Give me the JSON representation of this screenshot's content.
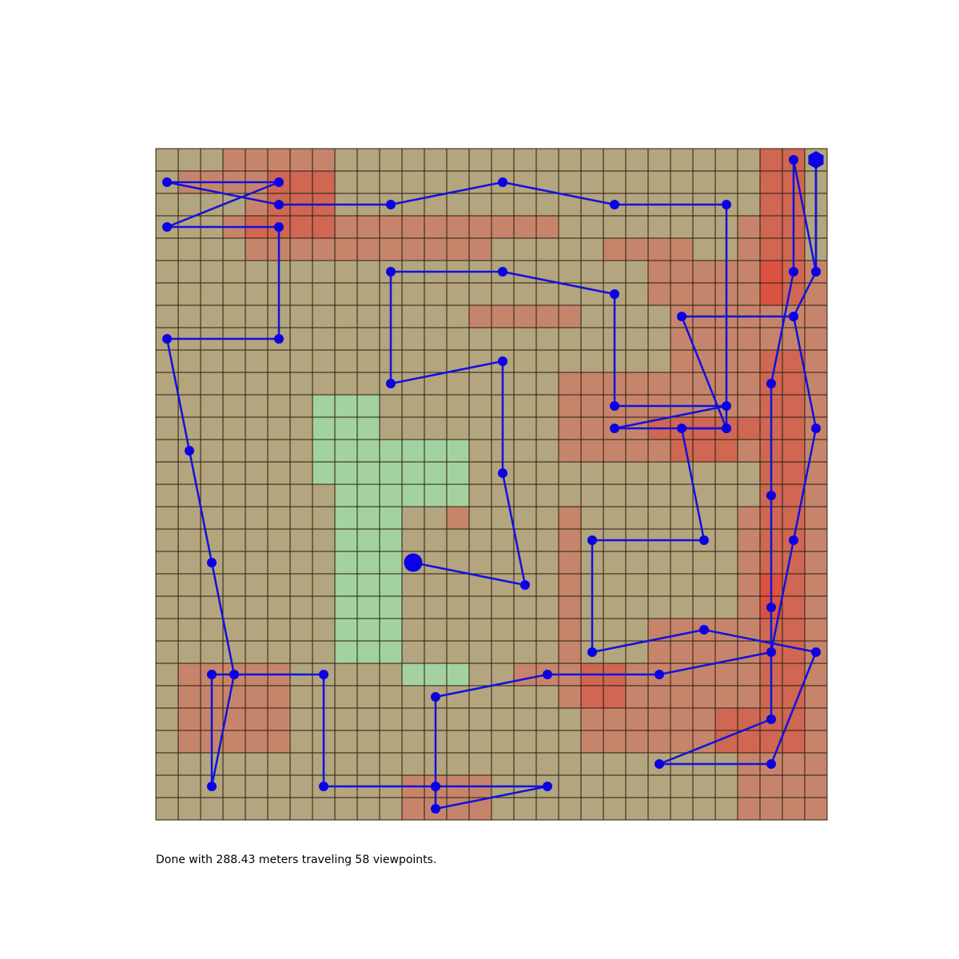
{
  "status_text": "Done with 288.43 meters traveling 58 viewpoints.",
  "colors": {
    "background": "#ffffff",
    "cell_neutral": "#b3a57d",
    "cell_green": "#a3d29f",
    "cell_red_1": "#c6856b",
    "cell_red_2": "#cf6752",
    "cell_red_3": "#dc5240",
    "grid_line": "#2a1c12",
    "path": "#1111dd",
    "marker": "#0b00e6"
  },
  "chart_data": {
    "type": "grid-path",
    "grid": {
      "cols": 30,
      "rows": 30,
      "cell_meaning": "0=neutral, 1=free (green), 2/3/4=increasing red intensity",
      "cells": [
        "000222220000000000000000000330",
        "022223330000000000000000000330",
        "000023330000000000000000000330",
        "000233332222222222000000002330",
        "000022222222222000002222002330",
        "000000000000000000000022222432",
        "000000000000000000000022222432",
        "000000000000002222200002222222",
        "000000000000000000000002222222",
        "000000000000000000000002222332",
        "000000000000000000222222222332",
        "000000011100000000222222222332",
        "000000011100000000222233333332",
        "000000011111110000222223332332",
        "000000011111110000000000000332",
        "000000001111110000000000000332",
        "000000001110020000200000002332",
        "000000001110000000200000002332",
        "000000001110000000200000002332",
        "000000001110000000200000002432",
        "000000001110000000200000002432",
        "000000001110000000200022222332",
        "000000001110000000200022222332",
        "022222000001110022233222222332",
        "022222000000000000233222222332",
        "022222000000000000022222233332",
        "022222000000000000022222233332",
        "000000000000000000000000002222",
        "000000000002222000000000002222",
        "000000000002222000000000002222"
      ]
    },
    "path_points": [
      {
        "col": 11.5,
        "row": 18.5,
        "size": "start"
      },
      {
        "col": 16.5,
        "row": 19.5
      },
      {
        "col": 15.5,
        "row": 14.5
      },
      {
        "col": 15.5,
        "row": 9.5
      },
      {
        "col": 10.5,
        "row": 10.5
      },
      {
        "col": 10.5,
        "row": 5.5
      },
      {
        "col": 15.5,
        "row": 5.5
      },
      {
        "col": 20.5,
        "row": 6.5
      },
      {
        "col": 20.5,
        "row": 11.5
      },
      {
        "col": 25.5,
        "row": 11.5
      },
      {
        "col": 20.5,
        "row": 12.5
      },
      {
        "col": 25.5,
        "row": 12.5
      },
      {
        "col": 23.5,
        "row": 12.5
      },
      {
        "col": 24.5,
        "row": 17.5
      },
      {
        "col": 19.5,
        "row": 17.5
      },
      {
        "col": 19.5,
        "row": 22.5
      },
      {
        "col": 24.5,
        "row": 21.5
      },
      {
        "col": 29.5,
        "row": 22.5
      },
      {
        "col": 27.5,
        "row": 27.5
      },
      {
        "col": 22.5,
        "row": 27.5
      },
      {
        "col": 27.5,
        "row": 25.5
      },
      {
        "col": 27.5,
        "row": 20.5
      },
      {
        "col": 27.5,
        "row": 15.5
      },
      {
        "col": 27.5,
        "row": 10.5
      },
      {
        "col": 28.5,
        "row": 5.5
      },
      {
        "col": 28.5,
        "row": 0.5
      },
      {
        "col": 29.5,
        "row": 5.5
      },
      {
        "col": 29.5,
        "row": 0.5,
        "size": "end"
      },
      {
        "col": 29.5,
        "row": 0.5
      },
      {
        "col": 29.5,
        "row": 5.5
      },
      {
        "col": 28.5,
        "row": 7.5
      },
      {
        "col": 29.5,
        "row": 12.5
      },
      {
        "col": 28.5,
        "row": 17.5
      },
      {
        "col": 27.5,
        "row": 22.5
      },
      {
        "col": 22.5,
        "row": 23.5
      },
      {
        "col": 17.5,
        "row": 23.5
      },
      {
        "col": 12.5,
        "row": 24.5
      },
      {
        "col": 12.5,
        "row": 28.5
      },
      {
        "col": 17.5,
        "row": 28.5
      },
      {
        "col": 12.5,
        "row": 29.5
      },
      {
        "col": 12.5,
        "row": 28.5
      },
      {
        "col": 7.5,
        "row": 28.5
      },
      {
        "col": 7.5,
        "row": 23.5
      },
      {
        "col": 2.5,
        "row": 23.5
      },
      {
        "col": 2.5,
        "row": 28.5
      },
      {
        "col": 3.5,
        "row": 23.5
      },
      {
        "col": 2.5,
        "row": 18.5
      },
      {
        "col": 1.5,
        "row": 13.5
      },
      {
        "col": 0.5,
        "row": 8.5
      },
      {
        "col": 5.5,
        "row": 8.5
      },
      {
        "col": 5.5,
        "row": 3.5
      },
      {
        "col": 0.5,
        "row": 3.5
      },
      {
        "col": 5.5,
        "row": 1.5
      },
      {
        "col": 0.5,
        "row": 1.5
      },
      {
        "col": 5.5,
        "row": 2.5
      },
      {
        "col": 10.5,
        "row": 2.5
      },
      {
        "col": 15.5,
        "row": 1.5
      },
      {
        "col": 20.5,
        "row": 2.5
      },
      {
        "col": 25.5,
        "row": 2.5
      },
      {
        "col": 25.5,
        "row": 12.5
      },
      {
        "col": 23.5,
        "row": 7.5
      },
      {
        "col": 28.5,
        "row": 7.5
      }
    ]
  }
}
